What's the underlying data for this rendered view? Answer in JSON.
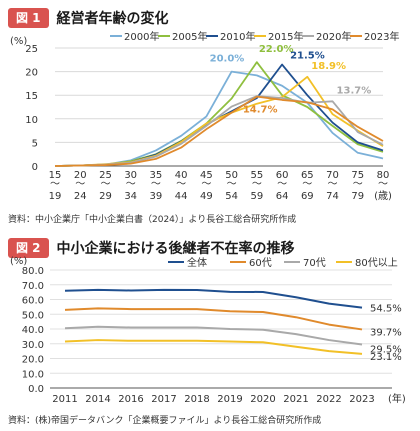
{
  "figure1": {
    "badge": "図 1",
    "title": "経営者年齢の変化",
    "source": "資料：中小企業庁「中小企業白書（2024）」より長谷工総合研究所作成"
  },
  "figure2": {
    "badge": "図 2",
    "title": "中小企業における後継者不在率の推移",
    "source": "資料：(株)帝国データバンク「企業概要ファイル」より長谷工総合研究所作成"
  },
  "chart_data": [
    {
      "type": "line",
      "title": "経営者年齢の変化",
      "ylabel": "(%)",
      "xlabel": "(歳)",
      "ylim": [
        0,
        25
      ],
      "yticks": [
        0,
        5,
        10,
        15,
        20,
        25
      ],
      "legend": "top",
      "categories": [
        "15〜19",
        "20〜24",
        "25〜29",
        "30〜34",
        "35〜39",
        "40〜44",
        "45〜49",
        "50〜54",
        "55〜59",
        "60〜64",
        "65〜69",
        "70〜74",
        "75〜79",
        "80〜"
      ],
      "x_top": [
        "15",
        "20",
        "25",
        "30",
        "35",
        "40",
        "45",
        "50",
        "55",
        "60",
        "65",
        "70",
        "75",
        "80"
      ],
      "x_bottom": [
        "19",
        "24",
        "29",
        "34",
        "39",
        "44",
        "49",
        "54",
        "59",
        "64",
        "69",
        "74",
        "79",
        "(歳)"
      ],
      "series": [
        {
          "name": "2000年",
          "color": "#7bb0d8",
          "values": [
            0.0,
            0.1,
            0.3,
            1.2,
            3.3,
            6.4,
            10.5,
            20.0,
            19.2,
            17.0,
            13.4,
            7.0,
            2.8,
            1.6
          ]
        },
        {
          "name": "2005年",
          "color": "#8fbf3f",
          "values": [
            0.0,
            0.1,
            0.3,
            1.0,
            2.5,
            5.3,
            9.0,
            14.3,
            22.0,
            15.0,
            12.5,
            8.5,
            4.6,
            3.0
          ]
        },
        {
          "name": "2010年",
          "color": "#1f4f8f",
          "values": [
            0.0,
            0.1,
            0.3,
            0.8,
            2.4,
            5.2,
            8.8,
            11.6,
            14.4,
            21.5,
            15.0,
            9.2,
            5.0,
            3.3
          ]
        },
        {
          "name": "2015年",
          "color": "#f2c027",
          "values": [
            0.0,
            0.1,
            0.4,
            0.8,
            2.2,
            5.1,
            9.0,
            11.3,
            13.2,
            14.6,
            18.9,
            11.0,
            7.5,
            4.2
          ]
        },
        {
          "name": "2020年",
          "color": "#a9a9a9",
          "values": [
            0.0,
            0.1,
            0.3,
            0.7,
            2.0,
            4.7,
            8.5,
            12.6,
            14.8,
            14.4,
            13.4,
            13.7,
            7.2,
            4.5
          ]
        },
        {
          "name": "2023年",
          "color": "#e08a2c",
          "values": [
            0.0,
            0.1,
            0.2,
            0.5,
            1.5,
            3.9,
            7.8,
            11.3,
            14.7,
            14.0,
            13.5,
            12.0,
            8.3,
            5.3
          ]
        }
      ],
      "annotations": [
        {
          "text": "20.0%",
          "series": "2000年",
          "index": 7,
          "color": "#7bb0d8"
        },
        {
          "text": "22.0%",
          "series": "2005年",
          "index": 8,
          "color": "#8fbf3f"
        },
        {
          "text": "21.5%",
          "series": "2010年",
          "index": 9,
          "color": "#1f4f8f"
        },
        {
          "text": "18.9%",
          "series": "2015年",
          "index": 10,
          "color": "#f2c027"
        },
        {
          "text": "13.7%",
          "series": "2020年",
          "index": 11,
          "color": "#a9a9a9"
        },
        {
          "text": "14.7%",
          "series": "2023年",
          "index": 8,
          "color": "#e08a2c"
        }
      ]
    },
    {
      "type": "line",
      "title": "中小企業における後継者不在率の推移",
      "ylabel": "(%)",
      "xlabel": "(年)",
      "ylim": [
        0,
        80
      ],
      "ytick_labels": [
        "0.0",
        "10.0",
        "20.0",
        "30.0",
        "40.0",
        "50.0",
        "60.0",
        "70.0",
        "80.0"
      ],
      "legend": "top",
      "categories": [
        "2011",
        "2014",
        "2016",
        "2017",
        "2018",
        "2019",
        "2020",
        "2021",
        "2022",
        "2023"
      ],
      "series": [
        {
          "name": "全体",
          "color": "#1f4f8f",
          "values": [
            65.9,
            66.5,
            66.1,
            66.5,
            66.4,
            65.2,
            65.1,
            61.5,
            57.2,
            54.5
          ]
        },
        {
          "name": "60代",
          "color": "#e08a2c",
          "values": [
            53.0,
            54.0,
            53.5,
            53.5,
            53.5,
            52.0,
            51.5,
            48.0,
            43.0,
            39.7
          ]
        },
        {
          "name": "70代",
          "color": "#a9a9a9",
          "values": [
            40.5,
            41.5,
            41.0,
            41.0,
            41.0,
            40.0,
            39.5,
            36.5,
            32.5,
            29.5
          ]
        },
        {
          "name": "80代以上",
          "color": "#f2c027",
          "values": [
            31.5,
            32.5,
            32.0,
            32.0,
            32.0,
            31.5,
            31.0,
            28.0,
            25.0,
            23.1
          ]
        }
      ],
      "end_labels": [
        "54.5%",
        "39.7%",
        "29.5%",
        "23.1%"
      ]
    }
  ]
}
